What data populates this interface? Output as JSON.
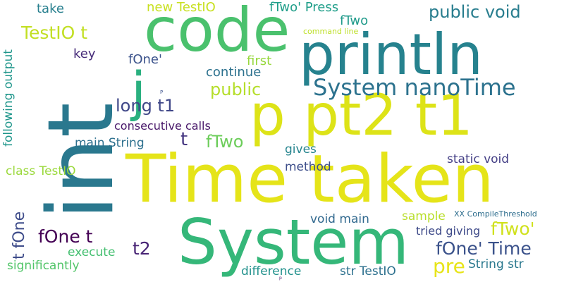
{
  "words": [
    {
      "text": "Time taken",
      "color": "#e5e419"
    },
    {
      "text": "int",
      "color": "#2a788e"
    },
    {
      "text": "System",
      "color": "#35b779"
    },
    {
      "text": "code",
      "color": "#4ac16d"
    },
    {
      "text": "println",
      "color": "#26828e"
    },
    {
      "text": "p pt2 t1",
      "color": "#dde318"
    },
    {
      "text": "System nanoTime",
      "color": "#2c728e"
    },
    {
      "text": "public void",
      "color": "#287d8e"
    },
    {
      "text": "j",
      "color": "#2ab07f"
    },
    {
      "text": "TestIO t",
      "color": "#c2df23"
    },
    {
      "text": "long t1",
      "color": "#3f4788"
    },
    {
      "text": "public",
      "color": "#b5de2b"
    },
    {
      "text": "fTwo",
      "color": "#6ccd5a"
    },
    {
      "text": "t",
      "color": "#453781"
    },
    {
      "text": "fOne t",
      "color": "#440154"
    },
    {
      "text": "fOne' Time",
      "color": "#3b528b"
    },
    {
      "text": "fTwo'",
      "color": "#d0e11c"
    },
    {
      "text": "pre",
      "color": "#e7e419"
    },
    {
      "text": "t2",
      "color": "#482475"
    },
    {
      "text": "new TestIO",
      "color": "#c8e020"
    },
    {
      "text": "fTwo' Press",
      "color": "#1f9e89"
    },
    {
      "text": "fTwo",
      "color": "#1f9a8a"
    },
    {
      "text": "take",
      "color": "#277f8e"
    },
    {
      "text": "key",
      "color": "#472c7a"
    },
    {
      "text": "fOne'",
      "color": "#3b528b"
    },
    {
      "text": "first",
      "color": "#98d83e"
    },
    {
      "text": "continue",
      "color": "#2c718e"
    },
    {
      "text": "consecutive calls",
      "color": "#481769"
    },
    {
      "text": "main String",
      "color": "#2d708e"
    },
    {
      "text": "gives",
      "color": "#25848e"
    },
    {
      "text": "method",
      "color": "#3d4e8a"
    },
    {
      "text": "static void",
      "color": "#433e85"
    },
    {
      "text": "class TestIO",
      "color": "#9bd93c"
    },
    {
      "text": "void main",
      "color": "#30688e"
    },
    {
      "text": "sample",
      "color": "#b8de29"
    },
    {
      "text": "XX CompileThreshold",
      "color": "#2e6e8e"
    },
    {
      "text": "tried giving",
      "color": "#3e4a89"
    },
    {
      "text": "execute",
      "color": "#44bf70"
    },
    {
      "text": "significantly",
      "color": "#52c569"
    },
    {
      "text": "difference",
      "color": "#21918c"
    },
    {
      "text": "str TestIO",
      "color": "#2d708e"
    },
    {
      "text": "String str",
      "color": "#2a788e"
    },
    {
      "text": "command line",
      "color": "#bddf26"
    },
    {
      "text": "following output",
      "color": "#1f968b"
    },
    {
      "text": "t fOne",
      "color": "#3e4c8a"
    },
    {
      "text": "P",
      "color": "#3b518b"
    },
    {
      "text": "p",
      "color": "#481b6d"
    }
  ]
}
